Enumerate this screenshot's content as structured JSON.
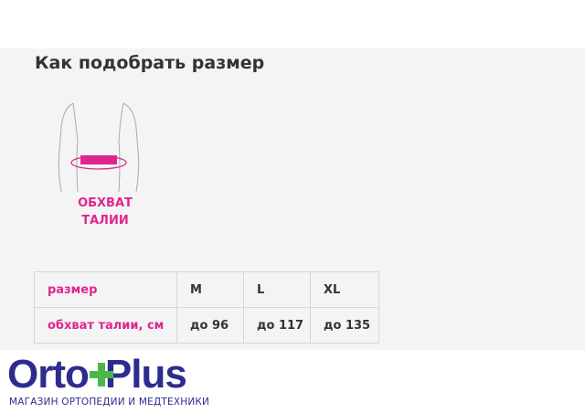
{
  "section_title": "Как подобрать размер",
  "figure": {
    "label_line1": "ОБХВАТ",
    "label_line2": "ТАЛИИ",
    "accent_color": "#e0268e"
  },
  "size_table": {
    "header_label": "размер",
    "row_label": "обхват талии, см",
    "sizes": [
      "M",
      "L",
      "XL"
    ],
    "waist": [
      "до 96",
      "до 117",
      "до 135"
    ]
  },
  "logo": {
    "text_left": "Orto",
    "text_right": "lus",
    "tagline": "МАГАЗИН ОРТОПЕДИИ И МЕДТЕХНИКИ",
    "brand_color": "#2d2c8e",
    "cross_color": "#4bb748"
  }
}
